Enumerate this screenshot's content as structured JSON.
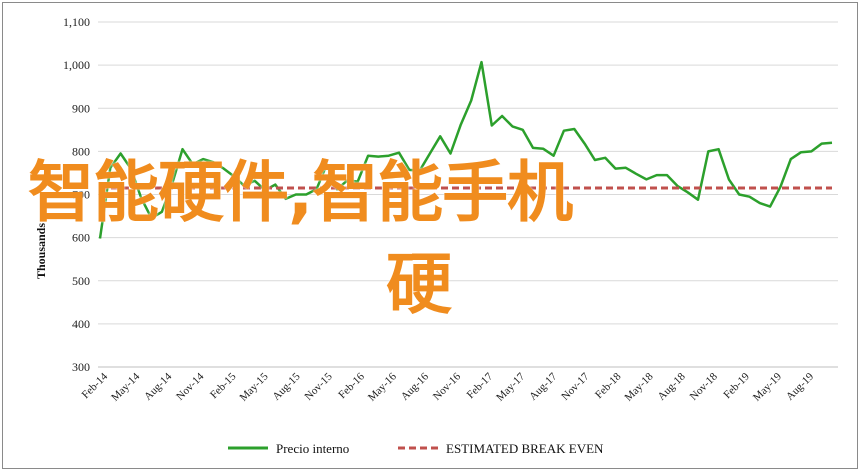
{
  "chart_data": {
    "type": "line",
    "title": "",
    "xlabel": "",
    "ylabel": "Thousands",
    "ylim": [
      300,
      1100
    ],
    "yticks": [
      "300",
      "400",
      "500",
      "600",
      "700",
      "800",
      "900",
      "1,000",
      "1,100"
    ],
    "ytick_values": [
      300,
      400,
      500,
      600,
      700,
      800,
      900,
      1000,
      1100
    ],
    "grid": "horizontal",
    "legend_position": "bottom",
    "xtick_labels": [
      "Feb-14",
      "May-14",
      "Aug-14",
      "Nov-14",
      "Feb-15",
      "May-15",
      "Aug-15",
      "Nov-15",
      "Feb-16",
      "May-16",
      "Aug-16",
      "Nov-16",
      "Feb-17",
      "May-17",
      "Aug-17",
      "Nov-17",
      "Feb-18",
      "May-18",
      "Aug-18",
      "Nov-18",
      "Feb-19",
      "May-19",
      "Aug-19"
    ],
    "series": [
      {
        "name": "Precio interno",
        "color": "#2ca02c",
        "style": "solid",
        "values": [
          598,
          762,
          795,
          760,
          692,
          645,
          660,
          725,
          805,
          770,
          782,
          775,
          760,
          742,
          720,
          732,
          710,
          723,
          690,
          700,
          700,
          712,
          770,
          712,
          733,
          730,
          790,
          788,
          790,
          797,
          757,
          755,
          795,
          835,
          795,
          862,
          918,
          1007,
          860,
          882,
          858,
          850,
          808,
          806,
          790,
          848,
          852,
          818,
          780,
          785,
          760,
          762,
          748,
          735,
          745,
          745,
          720,
          705,
          688,
          800,
          805,
          735,
          700,
          695,
          680,
          672,
          718,
          782,
          798,
          800,
          818,
          820
        ]
      },
      {
        "name": "ESTIMATED BREAK EVEN",
        "color": "#c0504d",
        "style": "dashed",
        "values": [
          715,
          715
        ]
      }
    ]
  },
  "overlay": {
    "line1": "智能硬件,智能手机",
    "line2": "硬",
    "color": "#f08c1e"
  }
}
